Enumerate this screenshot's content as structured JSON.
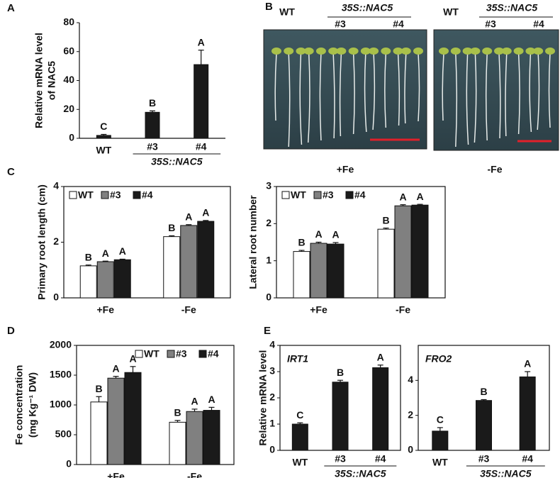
{
  "panel_labels": [
    "A",
    "B",
    "C",
    "D",
    "E"
  ],
  "photos": {
    "genotype": "WT",
    "line": "35S::NAC5",
    "lines": [
      "#3",
      "#4"
    ],
    "conditions": [
      "+Fe",
      "-Fe"
    ]
  },
  "chart_data": [
    {
      "type": "bar",
      "y_label": [
        "Relative mRNA level",
        "of NAC5"
      ],
      "categories": [
        "WT",
        "#3",
        "#4"
      ],
      "group_label": "35S::NAC5",
      "values": [
        2,
        18,
        51
      ],
      "errors": [
        0.7,
        1,
        10
      ],
      "letters": [
        "C",
        "B",
        "A"
      ],
      "color": "#1a1a1a",
      "ylim": [
        0,
        80
      ],
      "yticks": [
        0,
        20,
        40,
        60,
        80
      ]
    },
    {
      "type": "grouped_bar",
      "y_label": [
        "Primary root length (cm)"
      ],
      "categories": [
        "+Fe",
        "-Fe"
      ],
      "legend": "upper left",
      "series": [
        {
          "name": "WT",
          "color": "#ffffff",
          "values": [
            1.15,
            2.2
          ],
          "errors": [
            0.03,
            0.03
          ],
          "letters": [
            "B",
            "B"
          ]
        },
        {
          "name": "#3",
          "color": "#808080",
          "values": [
            1.3,
            2.6
          ],
          "errors": [
            0.02,
            0.03
          ],
          "letters": [
            "A",
            "A"
          ]
        },
        {
          "name": "#4",
          "color": "#1a1a1a",
          "values": [
            1.37,
            2.75
          ],
          "errors": [
            0.02,
            0.03
          ],
          "letters": [
            "A",
            "A"
          ]
        }
      ],
      "ylim": [
        0,
        4
      ],
      "yticks": [
        0,
        2,
        4
      ]
    },
    {
      "type": "grouped_bar",
      "y_label": [
        "Lateral root number"
      ],
      "categories": [
        "+Fe",
        "-Fe"
      ],
      "legend": "upper left",
      "series": [
        {
          "name": "WT",
          "color": "#ffffff",
          "values": [
            1.25,
            1.85
          ],
          "errors": [
            0.03,
            0.03
          ],
          "letters": [
            "B",
            "B"
          ]
        },
        {
          "name": "#3",
          "color": "#808080",
          "values": [
            1.47,
            2.48
          ],
          "errors": [
            0.03,
            0.03
          ],
          "letters": [
            "A",
            "A"
          ]
        },
        {
          "name": "#4",
          "color": "#1a1a1a",
          "values": [
            1.45,
            2.5
          ],
          "errors": [
            0.04,
            0.02
          ],
          "letters": [
            "A",
            "A"
          ]
        }
      ],
      "ylim": [
        0,
        3
      ],
      "yticks": [
        0,
        1,
        2,
        3
      ]
    },
    {
      "type": "grouped_bar",
      "y_label": [
        "Fe concentration",
        "(mg Kg⁻¹ DW)"
      ],
      "categories": [
        "+Fe",
        "-Fe"
      ],
      "legend": "upper right",
      "series": [
        {
          "name": "WT",
          "color": "#ffffff",
          "values": [
            1050,
            710
          ],
          "errors": [
            90,
            30
          ],
          "letters": [
            "B",
            "B"
          ]
        },
        {
          "name": "#3",
          "color": "#808080",
          "values": [
            1450,
            890
          ],
          "errors": [
            30,
            40
          ],
          "letters": [
            "A",
            "A"
          ]
        },
        {
          "name": "#4",
          "color": "#1a1a1a",
          "values": [
            1545,
            910
          ],
          "errors": [
            100,
            50
          ],
          "letters": [
            "A",
            "A"
          ]
        }
      ],
      "ylim": [
        0,
        2000
      ],
      "yticks": [
        0,
        500,
        1000,
        1500,
        2000
      ]
    },
    {
      "type": "bar",
      "title": "IRT1",
      "y_label": [
        "Relative mRNA level"
      ],
      "categories": [
        "WT",
        "#3",
        "#4"
      ],
      "group_label": "35S::NAC5",
      "values": [
        1.0,
        2.6,
        3.15
      ],
      "errors": [
        0.05,
        0.07,
        0.1
      ],
      "letters": [
        "C",
        "B",
        "A"
      ],
      "color": "#1a1a1a",
      "ylim": [
        0,
        4
      ],
      "yticks": [
        0,
        1,
        2,
        3,
        4
      ]
    },
    {
      "type": "bar",
      "title": "FRO2",
      "categories": [
        "WT",
        "#3",
        "#4"
      ],
      "group_label": "35S::NAC5",
      "values": [
        1.1,
        2.85,
        4.2
      ],
      "errors": [
        0.2,
        0.05,
        0.3
      ],
      "letters": [
        "C",
        "B",
        "A"
      ],
      "color": "#1a1a1a",
      "ylim": [
        0,
        6
      ],
      "yticks": [
        0,
        2,
        4
      ]
    }
  ]
}
